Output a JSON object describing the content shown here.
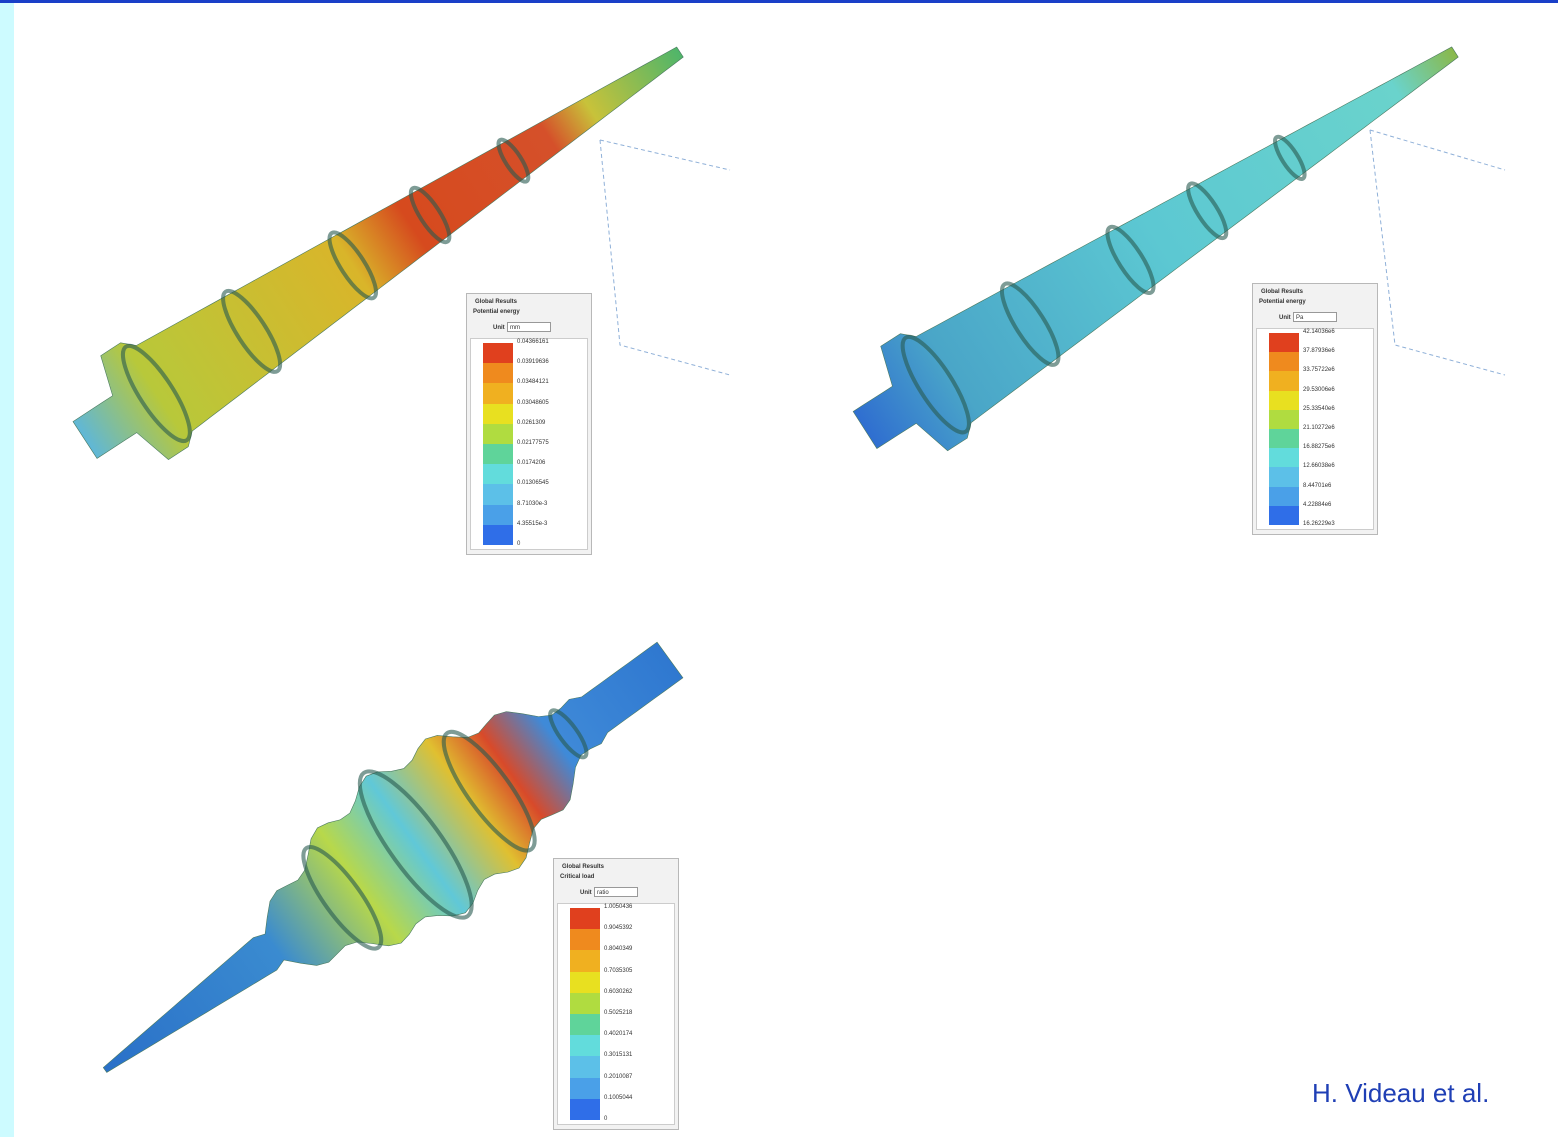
{
  "panels": [
    {
      "title": "Global Results",
      "quantity": "Potential energy",
      "unit_label": "Unit",
      "unit": "mm",
      "labels": [
        "0.04366161",
        "0.03919636",
        "0.03484121",
        "0.03048605",
        "0.0261309",
        "0.02177575",
        "0.0174206",
        "0.01306545",
        "8.71030e-3",
        "4.35515e-3",
        "0"
      ]
    },
    {
      "title": "Global Results",
      "quantity": "Potential energy",
      "unit_label": "Unit",
      "unit": "Pa",
      "labels": [
        "42.14036e6",
        "37.87936e6",
        "33.75722e6",
        "29.53006e6",
        "25.33540e6",
        "21.10272e6",
        "16.88275e6",
        "12.66038e6",
        "8.44701e6",
        "4.22884e6",
        "16.26229e3"
      ]
    },
    {
      "title": "Global Results",
      "quantity": "Critical load",
      "unit_label": "Unit",
      "unit": "ratio",
      "labels": [
        "1.0050436",
        "0.9045392",
        "0.8040349",
        "0.7035305",
        "0.6030262",
        "0.5025218",
        "0.4020174",
        "0.3015131",
        "0.2010087",
        "0.1005044",
        "0"
      ]
    }
  ],
  "credit": "H. Videau et al."
}
